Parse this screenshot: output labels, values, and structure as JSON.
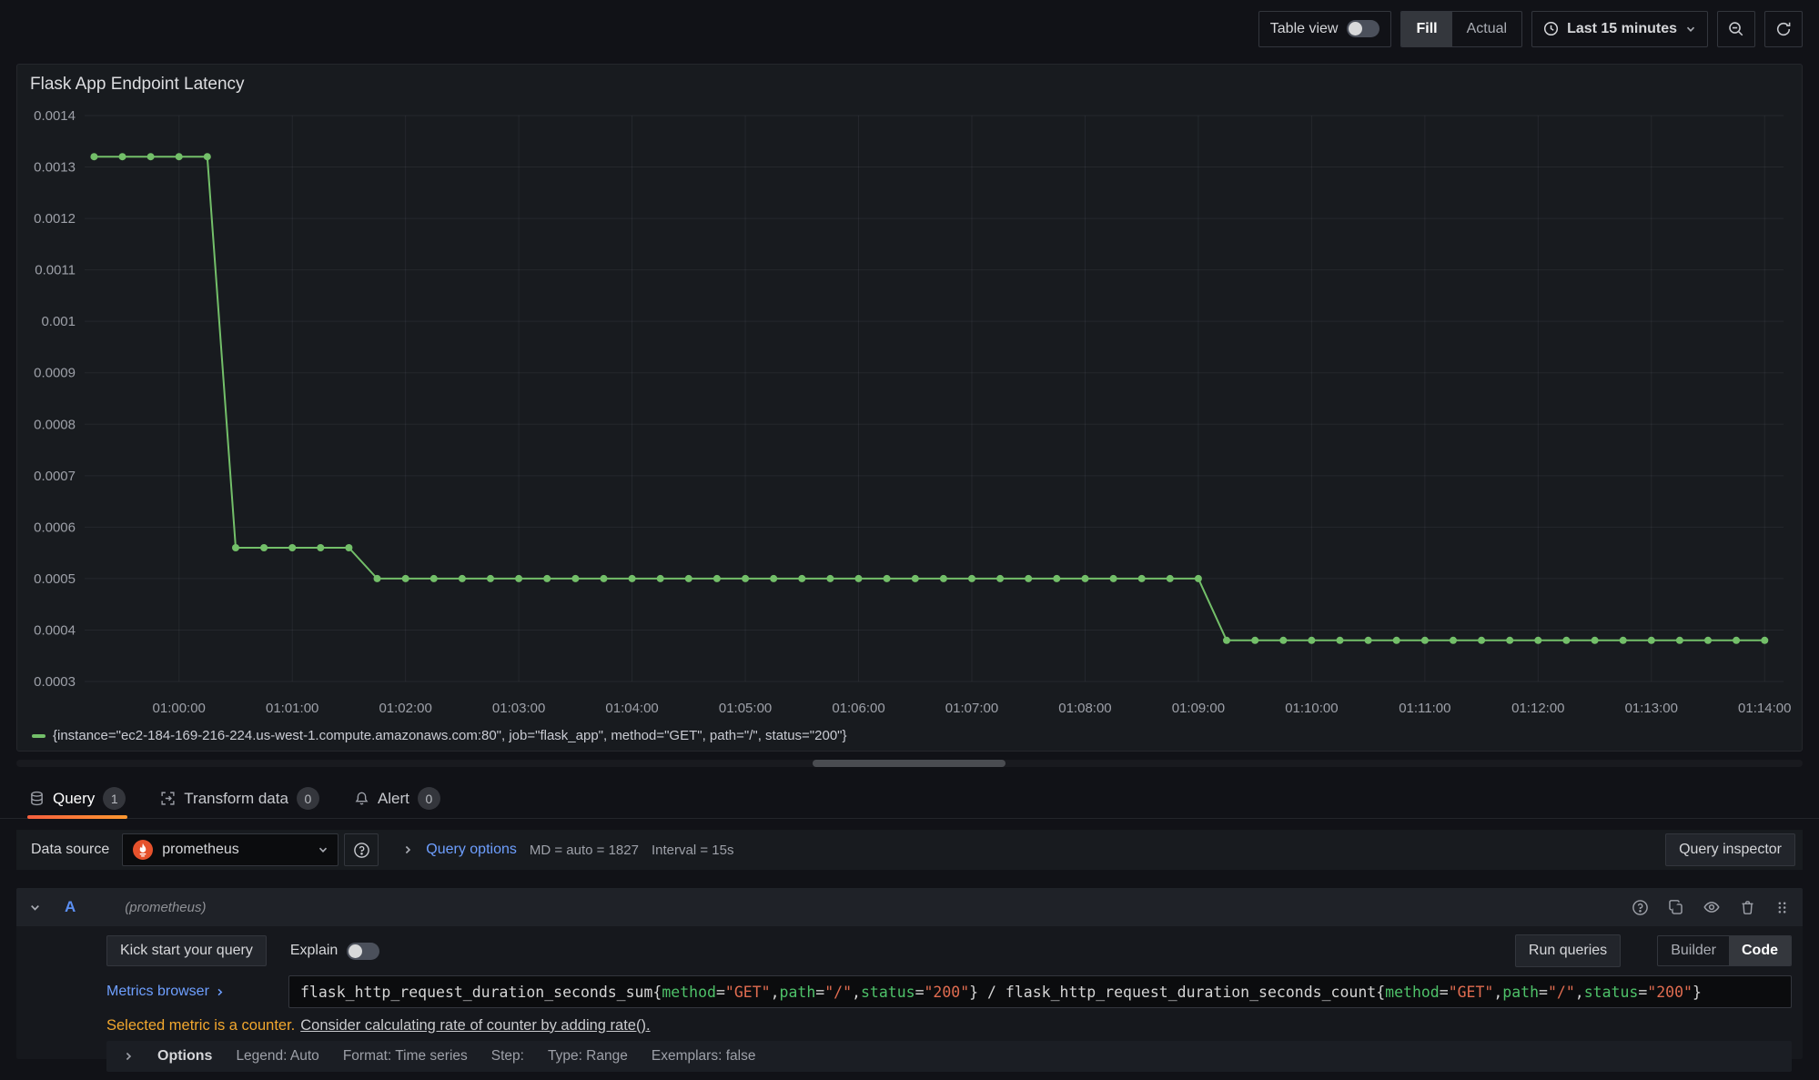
{
  "colors": {
    "series_green": "#73bf69",
    "link_blue": "#6e9fff",
    "ref_id_blue": "#5b8ff2",
    "warning_amber": "#f2a72e",
    "promql_label_green": "#4ec169",
    "promql_string_orange": "#e06c50",
    "prometheus_brand": "#e6522c",
    "tab_underline_start": "#f55f3e",
    "tab_underline_end": "#ff9830"
  },
  "toolbar": {
    "table_view_label": "Table view",
    "fill_label": "Fill",
    "actual_label": "Actual",
    "time_range_label": "Last 15 minutes"
  },
  "panel": {
    "title": "Flask App Endpoint Latency",
    "legend": "{instance=\"ec2-184-169-216-224.us-west-1.compute.amazonaws.com:80\", job=\"flask_app\", method=\"GET\", path=\"/\", status=\"200\"}"
  },
  "chart_data": {
    "type": "line",
    "title": "Flask App Endpoint Latency",
    "x_domain_seconds": [
      3550,
      4450
    ],
    "y_domain": [
      0.0003,
      0.0014
    ],
    "grid": true,
    "legend_position": "bottom",
    "x_tick_seconds": [
      3600,
      3660,
      3720,
      3780,
      3840,
      3900,
      3960,
      4020,
      4080,
      4140,
      4200,
      4260,
      4320,
      4380,
      4440
    ],
    "x_tick_labels": [
      "01:00:00",
      "01:01:00",
      "01:02:00",
      "01:03:00",
      "01:04:00",
      "01:05:00",
      "01:06:00",
      "01:07:00",
      "01:08:00",
      "01:09:00",
      "01:10:00",
      "01:11:00",
      "01:12:00",
      "01:13:00",
      "01:14:00"
    ],
    "y_ticks": [
      0.0014,
      0.0013,
      0.0012,
      0.0011,
      0.001,
      0.0009,
      0.0008,
      0.0007,
      0.0006,
      0.0005,
      0.0004,
      0.0003
    ],
    "y_tick_labels": [
      "0.0014",
      "0.0013",
      "0.0012",
      "0.0011",
      "0.001",
      "0.0009",
      "0.0008",
      "0.0007",
      "0.0006",
      "0.0005",
      "0.0004",
      "0.0003"
    ],
    "x_start_seconds": 3555,
    "x_step_seconds": 15,
    "series": [
      {
        "name": "{instance=\"ec2-184-169-216-224.us-west-1.compute.amazonaws.com:80\", job=\"flask_app\", method=\"GET\", path=\"/\", status=\"200\"}",
        "color": "#73bf69",
        "values": [
          0.00132,
          0.00132,
          0.00132,
          0.00132,
          0.00132,
          0.00056,
          0.00056,
          0.00056,
          0.00056,
          0.00056,
          0.0005,
          0.0005,
          0.0005,
          0.0005,
          0.0005,
          0.0005,
          0.0005,
          0.0005,
          0.0005,
          0.0005,
          0.0005,
          0.0005,
          0.0005,
          0.0005,
          0.0005,
          0.0005,
          0.0005,
          0.0005,
          0.0005,
          0.0005,
          0.0005,
          0.0005,
          0.0005,
          0.0005,
          0.0005,
          0.0005,
          0.0005,
          0.0005,
          0.0005,
          0.0005,
          0.00038,
          0.00038,
          0.00038,
          0.00038,
          0.00038,
          0.00038,
          0.00038,
          0.00038,
          0.00038,
          0.00038,
          0.00038,
          0.00038,
          0.00038,
          0.00038,
          0.00038,
          0.00038,
          0.00038,
          0.00038,
          0.00038,
          0.00038
        ]
      }
    ]
  },
  "tabs": [
    {
      "label": "Query",
      "badge": "1"
    },
    {
      "label": "Transform data",
      "badge": "0"
    },
    {
      "label": "Alert",
      "badge": "0"
    }
  ],
  "datasource_row": {
    "label": "Data source",
    "value": "prometheus",
    "query_options_label": "Query options",
    "md_text": "MD = auto = 1827",
    "interval_text": "Interval = 15s",
    "query_inspector_label": "Query inspector"
  },
  "query_row": {
    "ref_id": "A",
    "datasource_hint": "(prometheus)"
  },
  "query_toolbar": {
    "kick_start_label": "Kick start your query",
    "explain_label": "Explain",
    "run_queries_label": "Run queries",
    "builder_label": "Builder",
    "code_label": "Code"
  },
  "editor": {
    "metrics_browser_label": "Metrics browser",
    "tokens": [
      {
        "text": "flask_http_request_duration_seconds_sum{",
        "type": "plain"
      },
      {
        "text": "method",
        "type": "label"
      },
      {
        "text": "=",
        "type": "plain"
      },
      {
        "text": "\"GET\"",
        "type": "string"
      },
      {
        "text": ",",
        "type": "plain"
      },
      {
        "text": "path",
        "type": "label"
      },
      {
        "text": "=",
        "type": "plain"
      },
      {
        "text": "\"/\"",
        "type": "string"
      },
      {
        "text": ",",
        "type": "plain"
      },
      {
        "text": "status",
        "type": "label"
      },
      {
        "text": "=",
        "type": "plain"
      },
      {
        "text": "\"200\"",
        "type": "string"
      },
      {
        "text": "} / flask_http_request_duration_seconds_count{",
        "type": "plain"
      },
      {
        "text": "method",
        "type": "label"
      },
      {
        "text": "=",
        "type": "plain"
      },
      {
        "text": "\"GET\"",
        "type": "string"
      },
      {
        "text": ",",
        "type": "plain"
      },
      {
        "text": "path",
        "type": "label"
      },
      {
        "text": "=",
        "type": "plain"
      },
      {
        "text": "\"/\"",
        "type": "string"
      },
      {
        "text": ",",
        "type": "plain"
      },
      {
        "text": "status",
        "type": "label"
      },
      {
        "text": "=",
        "type": "plain"
      },
      {
        "text": "\"200\"",
        "type": "string"
      },
      {
        "text": "}",
        "type": "plain"
      }
    ]
  },
  "warning": {
    "strong": "Selected metric is a counter.",
    "link": "Consider calculating rate of counter by adding rate()."
  },
  "options_row": {
    "label": "Options",
    "items": [
      "Legend: Auto",
      "Format: Time series",
      "Step:",
      "Type: Range",
      "Exemplars: false"
    ]
  }
}
